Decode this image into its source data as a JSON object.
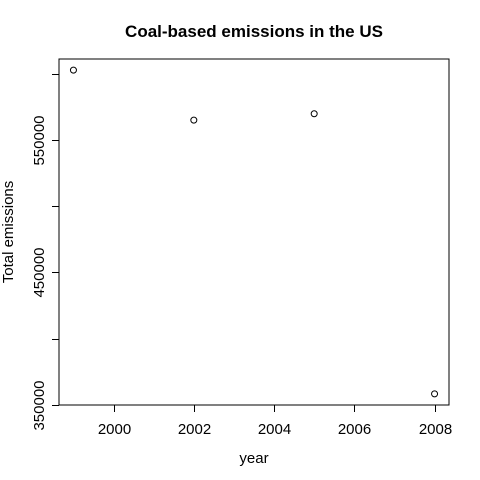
{
  "chart_data": {
    "type": "scatter",
    "title": "Coal-based emissions in the US",
    "xlabel": "year",
    "ylabel": "Total emissions",
    "x": [
      1999,
      2002,
      2005,
      2008
    ],
    "y": [
      602600,
      564900,
      569700,
      358400
    ],
    "xlim": [
      1998.64,
      2008.36
    ],
    "ylim": [
      350000,
      611000
    ],
    "xticks": [
      2000,
      2002,
      2004,
      2006,
      2008
    ],
    "xtick_labels": [
      "2000",
      "2002",
      "2004",
      "2006",
      "2008"
    ],
    "yticks": [
      350000,
      400000,
      450000,
      500000,
      550000,
      600000
    ],
    "ytick_labels": [
      "350000",
      "",
      "450000",
      "",
      "550000",
      ""
    ],
    "marker": "open-circle",
    "grid": false,
    "legend": "none",
    "colors": {
      "points": "#000000",
      "axes": "#000000",
      "background": "#ffffff"
    }
  }
}
